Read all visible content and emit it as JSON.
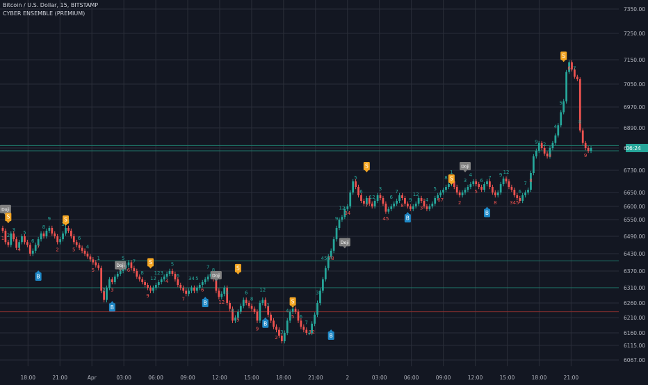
{
  "header": {
    "title": "Bitcoin / U.S. Dollar, 15, BITSTAMP",
    "indicator": "CYBER ENSEMBLE (PREMIUM)"
  },
  "price_badge": "06:24",
  "colors": {
    "background": "#131722",
    "grid": "#2a2e39",
    "up": "#26a69a",
    "down": "#ef5350",
    "axis_text": "#b2b5be",
    "sell_marker": "#f5a623",
    "buy_marker": "#1e88c7",
    "doji_marker": "#808080",
    "hline_green": "#1f7a6c",
    "hline_red": "#8b2f2f"
  },
  "chart_data": {
    "type": "candlestick",
    "title": "Bitcoin / U.S. Dollar, 15, BITSTAMP",
    "xlabel": "",
    "ylabel": "",
    "ylim": [
      6040,
      7370
    ],
    "y_ticks": [
      7350.0,
      7250.0,
      7150.0,
      7050.0,
      6970.0,
      6890.0,
      6810.0,
      6730.0,
      6650.0,
      6600.0,
      6550.0,
      6490.0,
      6430.0,
      6370.0,
      6310.0,
      6260.0,
      6210.0,
      6160.0,
      6115.0,
      6067.0
    ],
    "y_tick_labels": [
      "7350.00",
      "7250.00",
      "7150.00",
      "7050.00",
      "6970.00",
      "6890.00",
      "6810.00",
      "6730.00",
      "6650.00",
      "6600.00",
      "6550.00",
      "6490.00",
      "6430.00",
      "6370.00",
      "6310.00",
      "6260.00",
      "6210.00",
      "6160.00",
      "6115.00",
      "6067.00"
    ],
    "x_tick_labels": [
      "18:00",
      "21:00",
      "Apr",
      "03:00",
      "06:00",
      "09:00",
      "12:00",
      "15:00",
      "18:00",
      "21:00",
      "2",
      "03:00",
      "06:00",
      "09:00",
      "12:00",
      "15:00",
      "18:00",
      "21:00"
    ],
    "x_tick_index": [
      10,
      22,
      34,
      46,
      58,
      70,
      82,
      94,
      106,
      118,
      130,
      142,
      154,
      166,
      178,
      190,
      202,
      214
    ],
    "x_range": [
      0,
      222
    ],
    "candles_close": [
      6510,
      6470,
      6460,
      6500,
      6480,
      6450,
      6470,
      6490,
      6470,
      6460,
      6430,
      6440,
      6460,
      6480,
      6500,
      6490,
      6510,
      6520,
      6500,
      6490,
      6470,
      6480,
      6500,
      6520,
      6510,
      6490,
      6470,
      6460,
      6450,
      6440,
      6430,
      6420,
      6410,
      6400,
      6390,
      6380,
      6300,
      6270,
      6310,
      6340,
      6330,
      6350,
      6360,
      6370,
      6380,
      6390,
      6400,
      6380,
      6370,
      6350,
      6340,
      6330,
      6320,
      6310,
      6300,
      6310,
      6320,
      6330,
      6340,
      6350,
      6360,
      6370,
      6360,
      6340,
      6320,
      6310,
      6300,
      6290,
      6300,
      6310,
      6300,
      6310,
      6320,
      6330,
      6340,
      6350,
      6360,
      6340,
      6300,
      6280,
      6290,
      6310,
      6260,
      6240,
      6200,
      6210,
      6230,
      6250,
      6270,
      6260,
      6250,
      6240,
      6230,
      6200,
      6260,
      6270,
      6250,
      6220,
      6200,
      6180,
      6170,
      6150,
      6130,
      6160,
      6200,
      6230,
      6240,
      6230,
      6200,
      6180,
      6170,
      6160,
      6160,
      6190,
      6220,
      6260,
      6300,
      6340,
      6380,
      6420,
      6440,
      6480,
      6520,
      6550,
      6560,
      6590,
      6600,
      6650,
      6690,
      6670,
      6640,
      6620,
      6610,
      6630,
      6610,
      6600,
      6620,
      6640,
      6630,
      6610,
      6580,
      6590,
      6600,
      6610,
      6620,
      6640,
      6630,
      6610,
      6600,
      6590,
      6600,
      6610,
      6630,
      6620,
      6600,
      6590,
      6600,
      6610,
      6630,
      6640,
      6650,
      6660,
      6670,
      6680,
      6690,
      6670,
      6650,
      6640,
      6650,
      6660,
      6670,
      6680,
      6690,
      6680,
      6670,
      6660,
      6680,
      6690,
      6670,
      6650,
      6640,
      6650,
      6680,
      6700,
      6690,
      6670,
      6660,
      6640,
      6630,
      6620,
      6640,
      6650,
      6660,
      6720,
      6780,
      6800,
      6830,
      6810,
      6790,
      6780,
      6810,
      6830,
      6860,
      6900,
      6950,
      6990,
      7100,
      7140,
      7110,
      7080,
      7070,
      6880,
      6830,
      6810,
      6800,
      6810
    ],
    "hlines": [
      {
        "value": 6820,
        "color": "hline_green"
      },
      {
        "value": 6800,
        "color": "hline_green"
      },
      {
        "value": 6405,
        "color": "hline_green"
      },
      {
        "value": 6310,
        "color": "hline_green"
      },
      {
        "value": 6230,
        "color": "hline_red"
      }
    ],
    "markers": [
      {
        "type": "Doji",
        "index": 1,
        "value": 6590
      },
      {
        "type": "S",
        "index": 3,
        "value": 6560
      },
      {
        "type": "B",
        "index": 16,
        "value": 6350
      },
      {
        "type": "S",
        "index": 28,
        "value": 6550
      },
      {
        "type": "B",
        "index": 48,
        "value": 6245
      },
      {
        "type": "Doji",
        "index": 52,
        "value": 6390
      },
      {
        "type": "S",
        "index": 65,
        "value": 6400
      },
      {
        "type": "B",
        "index": 89,
        "value": 6260
      },
      {
        "type": "Doji",
        "index": 94,
        "value": 6355
      },
      {
        "type": "S",
        "index": 103,
        "value": 6380
      },
      {
        "type": "B",
        "index": 115,
        "value": 6190
      },
      {
        "type": "S",
        "index": 127,
        "value": 6265
      },
      {
        "type": "B",
        "index": 144,
        "value": 6150
      },
      {
        "type": "Doji",
        "index": 150,
        "value": 6470
      },
      {
        "type": "S",
        "index": 160,
        "value": 6745
      },
      {
        "type": "B",
        "index": 178,
        "value": 6555
      },
      {
        "type": "S",
        "index": 197,
        "value": 6700
      },
      {
        "type": "Doji",
        "index": 204,
        "value": 6745
      },
      {
        "type": "B",
        "index": 213,
        "value": 6575
      },
      {
        "type": "S",
        "index": 247,
        "value": 7165
      }
    ],
    "count_labels": [
      "1",
      "2",
      "3",
      "4",
      "5",
      "6",
      "7",
      "8",
      "9",
      "2",
      "3",
      "4",
      "5",
      "6",
      "4",
      "5",
      "1",
      "2",
      "3",
      "4",
      "5",
      "6",
      "7",
      "8",
      "9",
      "12",
      "123",
      "4",
      "5",
      "6",
      "7",
      "34",
      "5",
      "6",
      "7",
      "8",
      "12",
      "3",
      "4",
      "5",
      "6",
      "8",
      "9",
      "12",
      "1",
      "2",
      "3",
      "4",
      "5",
      "6",
      "7",
      "12",
      "3",
      "456",
      "78",
      "9",
      "12",
      "34",
      "5",
      "6",
      "7",
      "12",
      "3",
      "45",
      "6",
      "7",
      "8",
      "9",
      "12",
      "3",
      "4",
      "5",
      "67",
      "8",
      "1",
      "2",
      "3",
      "4",
      "5",
      "6",
      "7",
      "8",
      "9",
      "12",
      "345",
      "6",
      "7",
      "8",
      "9",
      "2",
      "3",
      "4",
      "5",
      "6",
      "7",
      "8",
      "9"
    ]
  }
}
